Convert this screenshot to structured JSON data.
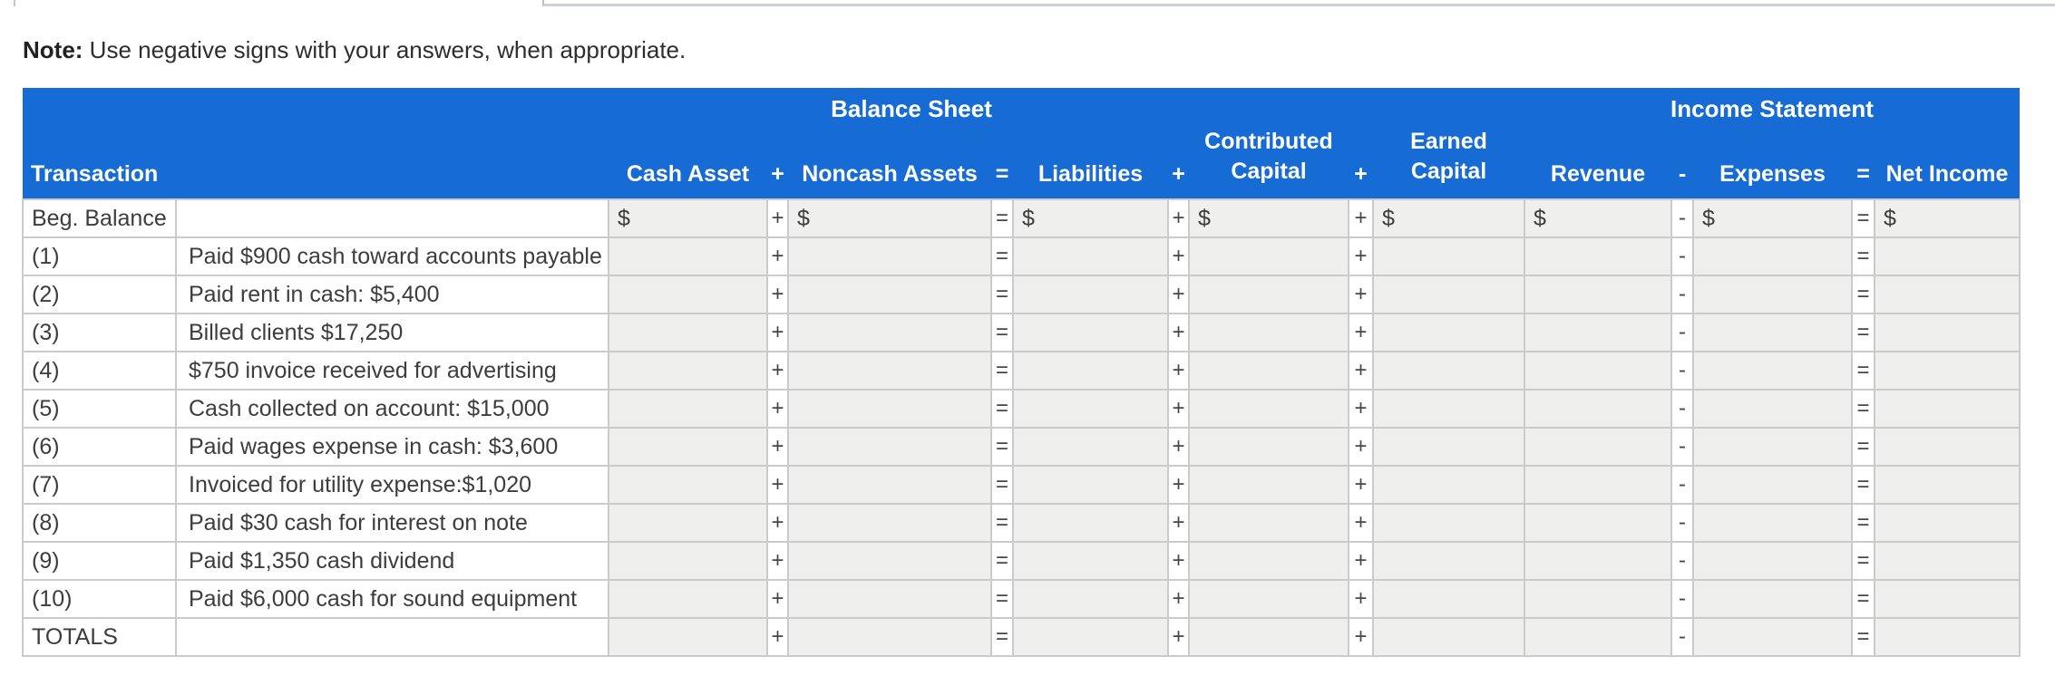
{
  "page": {
    "note_bold": "Note:",
    "note_text": " Use negative signs with your answers, when appropriate."
  },
  "colors": {
    "header_blue": "#176bd4",
    "input_gray": "#efefee",
    "border_gray": "#cbcbcb",
    "text_dark": "#3d3d3d"
  },
  "table": {
    "group_headers": {
      "balance_sheet": "Balance Sheet",
      "income_statement": "Income Statement"
    },
    "columns": {
      "transaction": "Transaction",
      "description": "",
      "cash_asset": "Cash Asset",
      "op_plus_1": "+",
      "noncash_assets": "Noncash Assets",
      "op_equals_1": "=",
      "liabilities": "Liabilities",
      "op_plus_2": "+",
      "contributed_capital_line1": "Contributed",
      "contributed_capital_line2": "Capital",
      "op_plus_3": "+",
      "earned_capital_line1": "Earned",
      "earned_capital_line2": "Capital",
      "revenue": "Revenue",
      "op_minus": "-",
      "expenses": "Expenses",
      "op_equals_2": "=",
      "net_income": "Net Income"
    },
    "dollar_prefix": "$",
    "row_operators": [
      "+",
      "=",
      "+",
      "+",
      "-",
      "="
    ],
    "amount_columns": [
      "cash-asset",
      "noncash-assets",
      "liabilities",
      "contributed-capital",
      "earned-capital",
      "revenue",
      "expenses",
      "net-income"
    ],
    "rows": [
      {
        "label": "Beg. Balance",
        "description": "",
        "show_dollar": true,
        "values": [
          "",
          "",
          "",
          "",
          "",
          "",
          "",
          ""
        ]
      },
      {
        "label": "(1)",
        "description": "Paid $900 cash toward accounts payable",
        "show_dollar": false,
        "values": [
          "",
          "",
          "",
          "",
          "",
          "",
          "",
          ""
        ]
      },
      {
        "label": "(2)",
        "description": "Paid rent in cash: $5,400",
        "show_dollar": false,
        "values": [
          "",
          "",
          "",
          "",
          "",
          "",
          "",
          ""
        ]
      },
      {
        "label": "(3)",
        "description": "Billed clients $17,250",
        "show_dollar": false,
        "values": [
          "",
          "",
          "",
          "",
          "",
          "",
          "",
          ""
        ]
      },
      {
        "label": "(4)",
        "description": "$750 invoice received for advertising",
        "show_dollar": false,
        "values": [
          "",
          "",
          "",
          "",
          "",
          "",
          "",
          ""
        ]
      },
      {
        "label": "(5)",
        "description": "Cash collected on account: $15,000",
        "show_dollar": false,
        "values": [
          "",
          "",
          "",
          "",
          "",
          "",
          "",
          ""
        ]
      },
      {
        "label": "(6)",
        "description": "Paid wages expense in cash: $3,600",
        "show_dollar": false,
        "values": [
          "",
          "",
          "",
          "",
          "",
          "",
          "",
          ""
        ]
      },
      {
        "label": "(7)",
        "description": "Invoiced for utility expense:$1,020",
        "show_dollar": false,
        "values": [
          "",
          "",
          "",
          "",
          "",
          "",
          "",
          ""
        ]
      },
      {
        "label": "(8)",
        "description": "Paid $30 cash for interest on note",
        "show_dollar": false,
        "values": [
          "",
          "",
          "",
          "",
          "",
          "",
          "",
          ""
        ]
      },
      {
        "label": "(9)",
        "description": "Paid $1,350 cash dividend",
        "show_dollar": false,
        "values": [
          "",
          "",
          "",
          "",
          "",
          "",
          "",
          ""
        ]
      },
      {
        "label": "(10)",
        "description": "Paid $6,000 cash for sound equipment",
        "show_dollar": false,
        "values": [
          "",
          "",
          "",
          "",
          "",
          "",
          "",
          ""
        ]
      },
      {
        "label": "TOTALS",
        "description": "",
        "show_dollar": false,
        "values": [
          "",
          "",
          "",
          "",
          "",
          "",
          "",
          ""
        ]
      }
    ]
  }
}
